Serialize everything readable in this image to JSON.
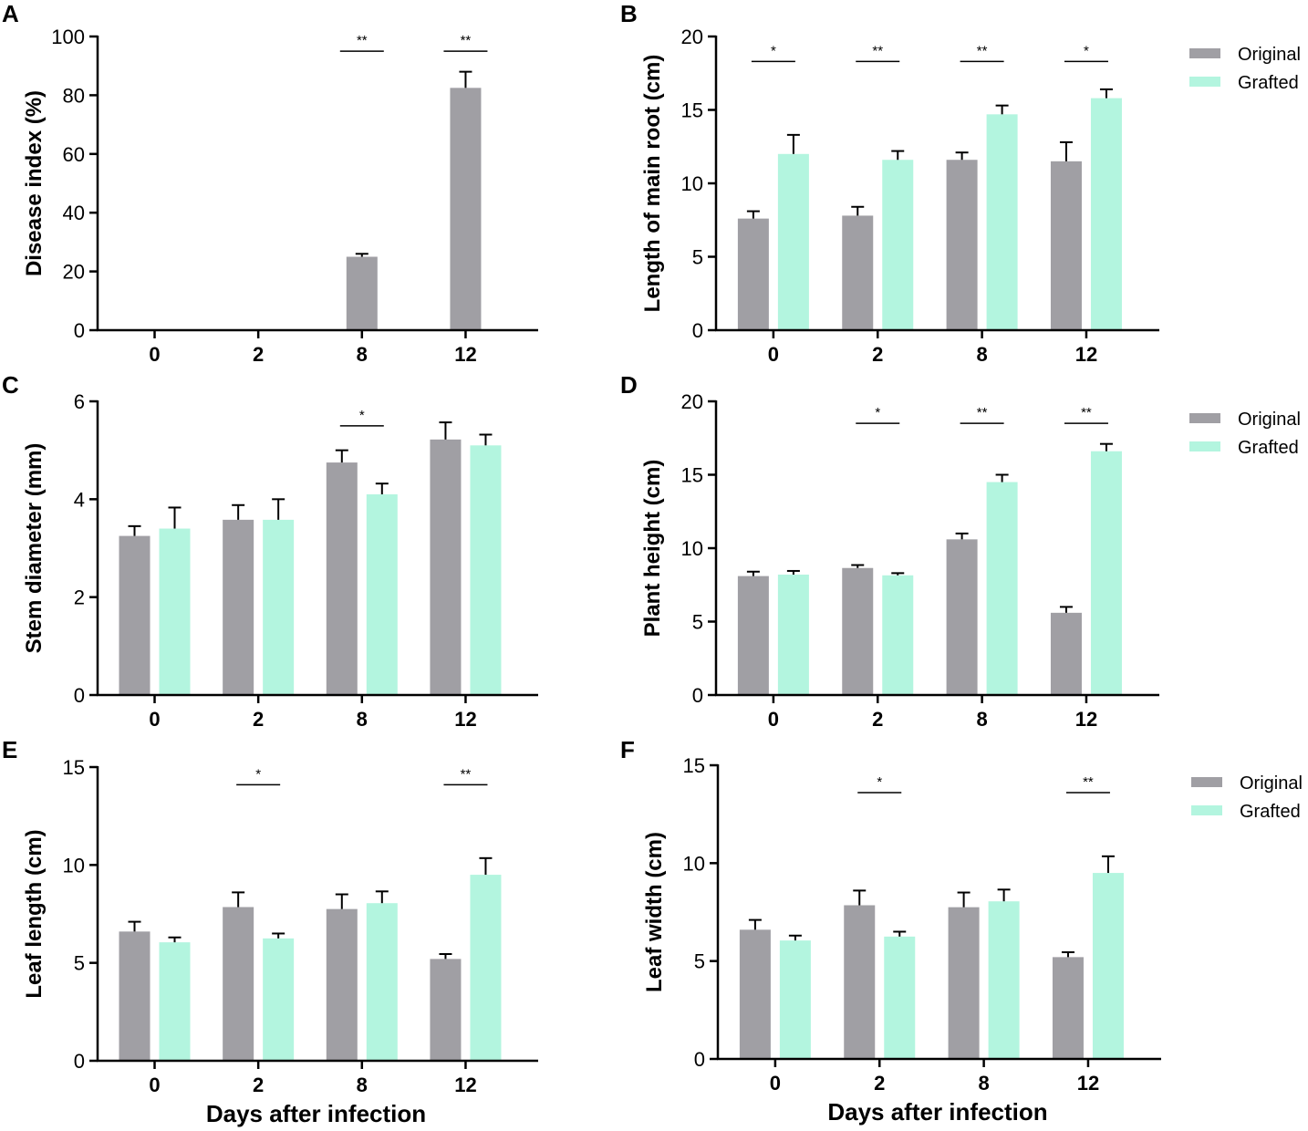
{
  "colors": {
    "original": "#a09fa4",
    "grafted": "#b3f5df",
    "axis": "#000000",
    "text": "#000000"
  },
  "figure": {
    "xlabel": "Days after infection"
  },
  "chart_data": [
    {
      "panel": "A",
      "type": "bar",
      "categories": [
        "0",
        "2",
        "8",
        "12"
      ],
      "ylabel": "Disease index (%)",
      "ylim": [
        0,
        100
      ],
      "yticks": [
        "0",
        "20",
        "40",
        "60",
        "80",
        "100"
      ],
      "legend": null,
      "series": [
        {
          "name": "Original",
          "values": [
            0,
            0,
            25,
            82.5
          ],
          "errors": [
            0,
            0,
            1,
            5.5
          ]
        }
      ],
      "significance": [
        {
          "category": "8",
          "label": "**",
          "y": 95
        },
        {
          "category": "12",
          "label": "**",
          "y": 95
        }
      ]
    },
    {
      "panel": "B",
      "type": "bar",
      "categories": [
        "0",
        "2",
        "8",
        "12"
      ],
      "ylabel": "Length of main root (cm)",
      "ylim": [
        0,
        20
      ],
      "yticks": [
        "0",
        "5",
        "10",
        "15",
        "20"
      ],
      "legend": [
        "Original",
        "Grafted"
      ],
      "series": [
        {
          "name": "Original",
          "values": [
            7.6,
            7.8,
            11.6,
            11.5
          ],
          "errors": [
            0.5,
            0.6,
            0.5,
            1.3
          ]
        },
        {
          "name": "Grafted",
          "values": [
            12,
            11.6,
            14.7,
            15.8
          ],
          "errors": [
            1.3,
            0.6,
            0.6,
            0.6
          ]
        }
      ],
      "significance": [
        {
          "category": "0",
          "label": "*",
          "y": 18.3
        },
        {
          "category": "2",
          "label": "**",
          "y": 18.3
        },
        {
          "category": "8",
          "label": "**",
          "y": 18.3
        },
        {
          "category": "12",
          "label": "*",
          "y": 18.3
        }
      ]
    },
    {
      "panel": "C",
      "type": "bar",
      "categories": [
        "0",
        "2",
        "8",
        "12"
      ],
      "ylabel": "Stem diameter (mm)",
      "ylim": [
        0,
        6
      ],
      "yticks": [
        "0",
        "2",
        "4",
        "6"
      ],
      "legend": null,
      "series": [
        {
          "name": "Original",
          "values": [
            3.25,
            3.58,
            4.75,
            5.22
          ],
          "errors": [
            0.2,
            0.3,
            0.25,
            0.35
          ]
        },
        {
          "name": "Grafted",
          "values": [
            3.4,
            3.58,
            4.1,
            5.1
          ],
          "errors": [
            0.43,
            0.42,
            0.22,
            0.22
          ]
        }
      ],
      "significance": [
        {
          "category": "8",
          "label": "*",
          "y": 5.5
        }
      ]
    },
    {
      "panel": "D",
      "type": "bar",
      "categories": [
        "0",
        "2",
        "8",
        "12"
      ],
      "ylabel": "Plant height (cm)",
      "ylim": [
        0,
        20
      ],
      "yticks": [
        "0",
        "5",
        "10",
        "15",
        "20"
      ],
      "legend": [
        "Original",
        "Grafted"
      ],
      "series": [
        {
          "name": "Original",
          "values": [
            8.1,
            8.65,
            10.6,
            5.6
          ],
          "errors": [
            0.3,
            0.2,
            0.4,
            0.4
          ]
        },
        {
          "name": "Grafted",
          "values": [
            8.2,
            8.15,
            14.5,
            16.6
          ],
          "errors": [
            0.25,
            0.15,
            0.5,
            0.5
          ]
        }
      ],
      "significance": [
        {
          "category": "2",
          "label": "*",
          "y": 18.5
        },
        {
          "category": "8",
          "label": "**",
          "y": 18.5
        },
        {
          "category": "12",
          "label": "**",
          "y": 18.5
        }
      ]
    },
    {
      "panel": "E",
      "type": "bar",
      "categories": [
        "0",
        "2",
        "8",
        "12"
      ],
      "xlabel": "Days after infection",
      "ylabel": "Leaf length (cm)",
      "ylim": [
        0,
        15
      ],
      "yticks": [
        "0",
        "5",
        "10",
        "15"
      ],
      "legend": null,
      "series": [
        {
          "name": "Original",
          "values": [
            6.6,
            7.85,
            7.75,
            5.2
          ],
          "errors": [
            0.5,
            0.75,
            0.75,
            0.25
          ]
        },
        {
          "name": "Grafted",
          "values": [
            6.05,
            6.25,
            8.05,
            9.5
          ],
          "errors": [
            0.25,
            0.25,
            0.6,
            0.85
          ]
        }
      ],
      "significance": [
        {
          "category": "2",
          "label": "*",
          "y": 14.1
        },
        {
          "category": "12",
          "label": "**",
          "y": 14.1
        }
      ]
    },
    {
      "panel": "F",
      "type": "bar",
      "categories": [
        "0",
        "2",
        "8",
        "12"
      ],
      "xlabel": "Days after infection",
      "ylabel": "Leaf width (cm)",
      "ylim": [
        0,
        15
      ],
      "yticks": [
        "0",
        "5",
        "10",
        "15"
      ],
      "legend": [
        "Original",
        "Grafted"
      ],
      "series": [
        {
          "name": "Original",
          "values": [
            6.6,
            7.85,
            7.75,
            5.2
          ],
          "errors": [
            0.5,
            0.75,
            0.75,
            0.25
          ]
        },
        {
          "name": "Grafted",
          "values": [
            6.05,
            6.25,
            8.05,
            9.5
          ],
          "errors": [
            0.25,
            0.25,
            0.6,
            0.85
          ]
        }
      ],
      "significance": [
        {
          "category": "2",
          "label": "*",
          "y": 13.6
        },
        {
          "category": "12",
          "label": "**",
          "y": 13.6
        }
      ]
    }
  ]
}
